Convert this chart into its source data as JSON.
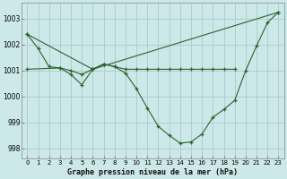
{
  "title": "Graphe pression niveau de la mer (hPa)",
  "background_color": "#cce8e8",
  "grid_color": "#aacccc",
  "line_color": "#2d622d",
  "xlim": [
    -0.5,
    23.5
  ],
  "ylim": [
    997.6,
    1003.6
  ],
  "yticks": [
    998,
    999,
    1000,
    1001,
    1002,
    1003
  ],
  "xticks": [
    0,
    1,
    2,
    3,
    4,
    5,
    6,
    7,
    8,
    9,
    10,
    11,
    12,
    13,
    14,
    15,
    16,
    17,
    18,
    19,
    20,
    21,
    22,
    23
  ],
  "series": [
    {
      "x": [
        0,
        1,
        2,
        3,
        4,
        5,
        6,
        7,
        8,
        9,
        10,
        11,
        12,
        13,
        14,
        15,
        16,
        17,
        18,
        19,
        20,
        21,
        22,
        23
      ],
      "y": [
        1002.4,
        1001.85,
        1001.15,
        1001.1,
        1000.85,
        1000.45,
        1001.05,
        1001.25,
        1001.15,
        1000.9,
        1000.3,
        999.55,
        998.85,
        998.5,
        998.2,
        998.25,
        998.55,
        999.2,
        999.5,
        999.85,
        1001.0,
        1001.95,
        1002.85,
        1003.25
      ]
    },
    {
      "x": [
        0,
        6,
        23
      ],
      "y": [
        1002.4,
        1001.05,
        1003.25
      ]
    },
    {
      "x": [
        0,
        3,
        4,
        5,
        6,
        7,
        8,
        9,
        10,
        11,
        12,
        13,
        14,
        15,
        16,
        17,
        18,
        19
      ],
      "y": [
        1001.05,
        1001.1,
        1001.0,
        1000.85,
        1001.05,
        1001.25,
        1001.15,
        1001.05,
        1001.05,
        1001.05,
        1001.05,
        1001.05,
        1001.05,
        1001.05,
        1001.05,
        1001.05,
        1001.05,
        1001.05
      ]
    }
  ]
}
